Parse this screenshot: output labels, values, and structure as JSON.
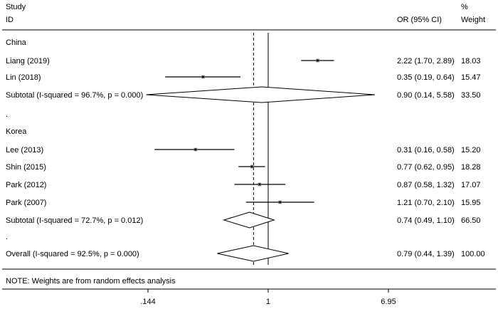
{
  "chart_data": {
    "type": "forest",
    "header": {
      "study_line1": "Study",
      "study_line2": "ID",
      "or_label": "OR (95% CI)",
      "weight_line1": "%",
      "weight_line2": "Weight"
    },
    "rows": [
      {
        "kind": "group",
        "label": "China"
      },
      {
        "kind": "study",
        "label": "Liang (2019)",
        "or": 2.22,
        "lo": 1.7,
        "hi": 2.89,
        "or_text": "2.22 (1.70, 2.89)",
        "weight": "18.03"
      },
      {
        "kind": "study",
        "label": "Lin (2018)",
        "or": 0.35,
        "lo": 0.19,
        "hi": 0.64,
        "or_text": "0.35 (0.19, 0.64)",
        "weight": "15.47"
      },
      {
        "kind": "subtotal",
        "label": "Subtotal  (I-squared = 96.7%, p = 0.000)",
        "or": 0.9,
        "lo": 0.14,
        "hi": 5.58,
        "or_text": "0.90 (0.14, 5.58)",
        "weight": "33.50"
      },
      {
        "kind": "dot",
        "label": "."
      },
      {
        "kind": "group",
        "label": "Korea"
      },
      {
        "kind": "study",
        "label": "Lee (2013)",
        "or": 0.31,
        "lo": 0.16,
        "hi": 0.58,
        "or_text": "0.31 (0.16, 0.58)",
        "weight": "15.20"
      },
      {
        "kind": "study",
        "label": "Shin (2015)",
        "or": 0.77,
        "lo": 0.62,
        "hi": 0.95,
        "or_text": "0.77 (0.62, 0.95)",
        "weight": "18.28"
      },
      {
        "kind": "study",
        "label": "Park (2012)",
        "or": 0.87,
        "lo": 0.58,
        "hi": 1.32,
        "or_text": "0.87 (0.58, 1.32)",
        "weight": "17.07"
      },
      {
        "kind": "study",
        "label": "Park (2007)",
        "or": 1.21,
        "lo": 0.7,
        "hi": 2.1,
        "or_text": "1.21 (0.70, 2.10)",
        "weight": "15.95"
      },
      {
        "kind": "subtotal",
        "label": "Subtotal  (I-squared = 72.7%, p = 0.012)",
        "or": 0.74,
        "lo": 0.49,
        "hi": 1.1,
        "or_text": "0.74 (0.49, 1.10)",
        "weight": "66.50"
      },
      {
        "kind": "dot",
        "label": "."
      },
      {
        "kind": "overall",
        "label": "Overall  (I-squared = 92.5%, p = 0.000)",
        "or": 0.79,
        "lo": 0.44,
        "hi": 1.39,
        "or_text": "0.79 (0.44, 1.39)",
        "weight": "100.00"
      }
    ],
    "note": "NOTE: Weights are from random effects analysis",
    "null_value": 1,
    "pooled_value": 0.79,
    "x_scale": "log",
    "x_range": [
      0.144,
      6.95
    ],
    "x_ticks": [
      {
        "value": 0.144,
        "label": ".144"
      },
      {
        "value": 1,
        "label": "1"
      },
      {
        "value": 6.95,
        "label": "6.95"
      }
    ]
  }
}
